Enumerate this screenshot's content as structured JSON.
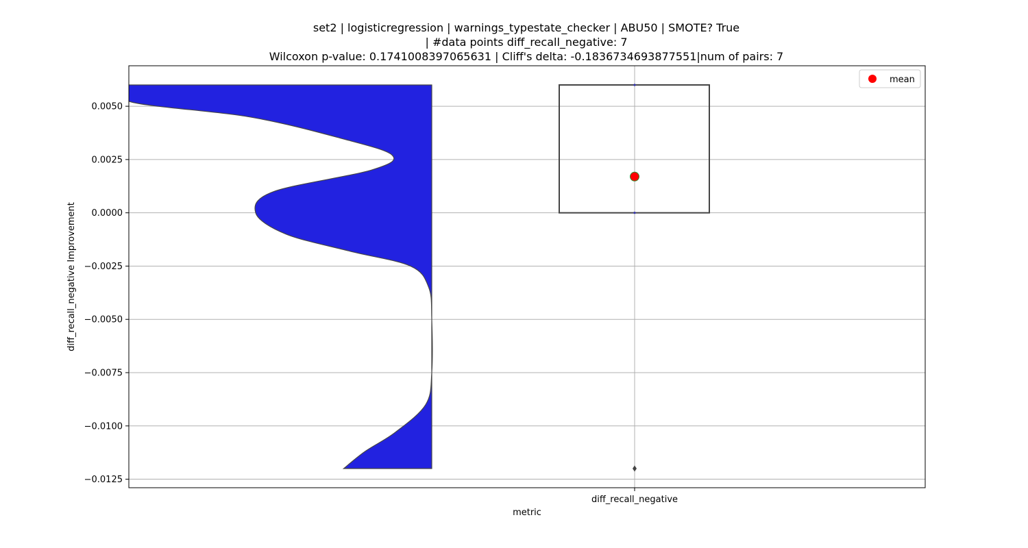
{
  "chart_data": {
    "type": "violin+box",
    "title_lines": [
      "set2 | logisticregression | warnings_typestate_checker | ABU50 | SMOTE? True",
      "| #data points diff_recall_negative: 7",
      "Wilcoxon p-value: 0.1741008397065631 | Cliff's delta: -0.1836734693877551|num of pairs: 7"
    ],
    "xlabel": "metric",
    "ylabel": "diff_recall_negative Improvement",
    "categories": [
      "diff_recall_negative"
    ],
    "ylim": [
      -0.0129,
      0.0069
    ],
    "yticks": [
      0.005,
      0.0025,
      0.0,
      -0.0025,
      -0.005,
      -0.0075,
      -0.01,
      -0.0125
    ],
    "ytick_labels": [
      "0.0050",
      "0.0025",
      "0.0000",
      "−0.0025",
      "−0.0050",
      "−0.0075",
      "−0.0100",
      "−0.0125"
    ],
    "grid": true,
    "violin": {
      "color": "#2222e0",
      "range": [
        -0.012,
        0.006
      ],
      "half_width_profile": [
        {
          "y": 0.006,
          "w": 1.0
        },
        {
          "y": 0.0052,
          "w": 0.99
        },
        {
          "y": 0.0045,
          "w": 0.6
        },
        {
          "y": 0.0035,
          "w": 0.3
        },
        {
          "y": 0.0027,
          "w": 0.13
        },
        {
          "y": 0.002,
          "w": 0.2
        },
        {
          "y": 0.001,
          "w": 0.52
        },
        {
          "y": 0.0,
          "w": 0.58
        },
        {
          "y": -0.001,
          "w": 0.48
        },
        {
          "y": -0.0018,
          "w": 0.27
        },
        {
          "y": -0.0025,
          "w": 0.07
        },
        {
          "y": -0.0035,
          "w": 0.01
        },
        {
          "y": -0.005,
          "w": 0.0
        },
        {
          "y": -0.0075,
          "w": 0.0
        },
        {
          "y": -0.009,
          "w": 0.02
        },
        {
          "y": -0.0103,
          "w": 0.12
        },
        {
          "y": -0.0112,
          "w": 0.22
        },
        {
          "y": -0.012,
          "w": 0.29
        }
      ]
    },
    "box": {
      "q1": 0.0,
      "q3": 0.006,
      "whisker_low": 0.0,
      "whisker_high": 0.006,
      "outliers": [
        -0.012
      ],
      "mean": 0.0017,
      "color": "#444444"
    },
    "legend": {
      "entries": [
        "mean"
      ],
      "placement": "top-right",
      "marker_color": "#ff0000"
    }
  }
}
